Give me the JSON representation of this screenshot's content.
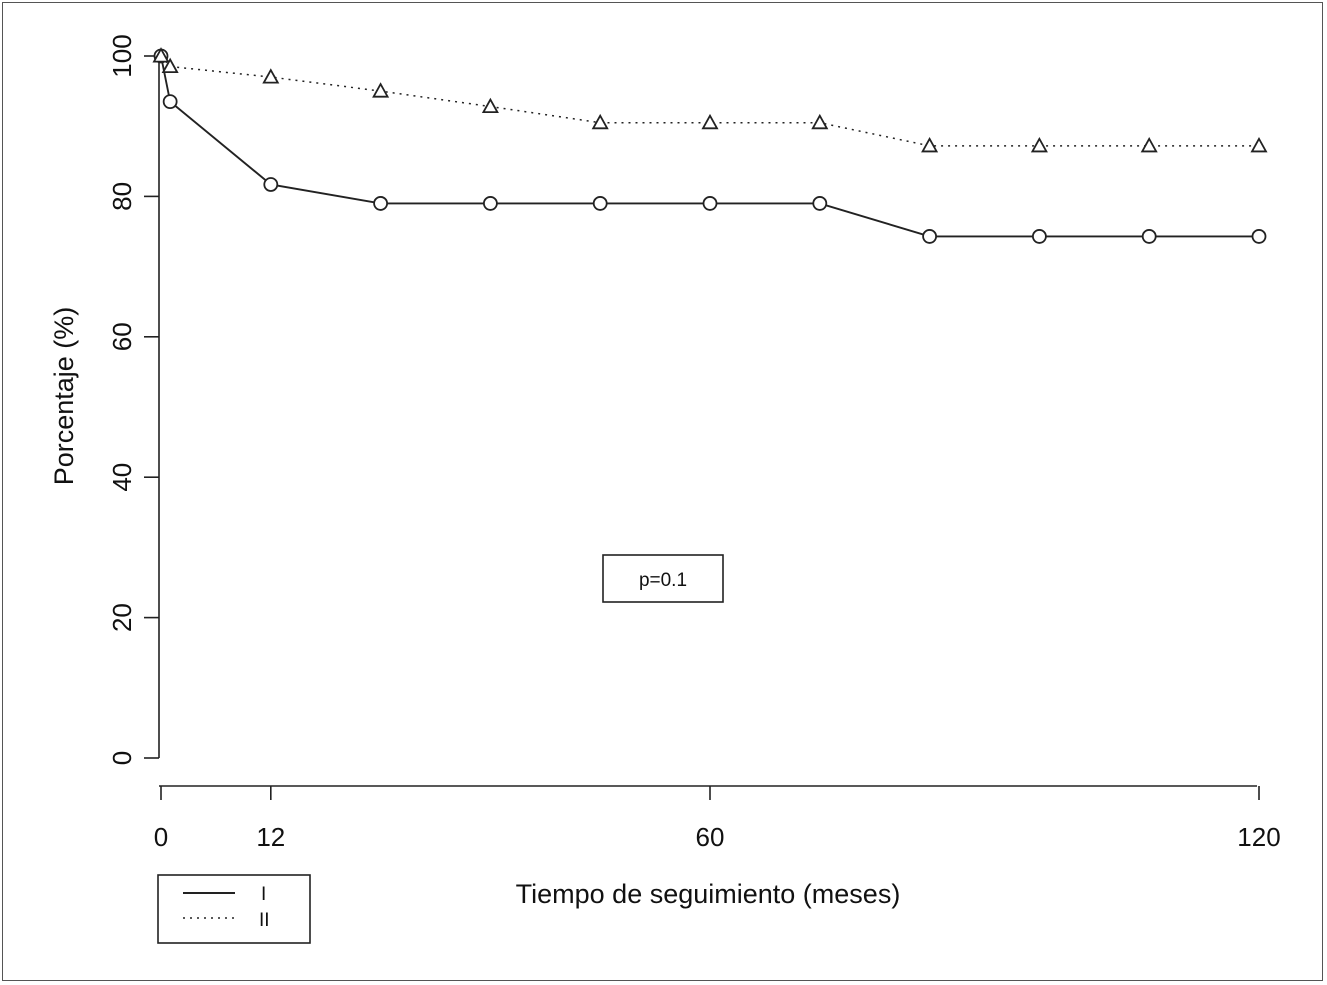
{
  "chart_data": {
    "type": "line",
    "xlabel": "Tiempo de seguimiento (meses)",
    "ylabel": "Porcentaje (%)",
    "xlim": [
      0,
      120
    ],
    "ylim": [
      0,
      100
    ],
    "x_ticks": [
      0,
      12,
      60,
      120
    ],
    "y_ticks": [
      0,
      20,
      40,
      60,
      80,
      100
    ],
    "annotation": "p=0.1",
    "legend_position": "bottom-left",
    "grid": false,
    "series": [
      {
        "name": "I",
        "line_style": "solid",
        "marker": "circle",
        "color": "#222222",
        "x": [
          0,
          1,
          12,
          24,
          36,
          48,
          60,
          72,
          84,
          96,
          108,
          120
        ],
        "y": [
          100,
          93.5,
          81.7,
          79.0,
          79.0,
          79.0,
          79.0,
          79.0,
          74.3,
          74.3,
          74.3,
          74.3
        ]
      },
      {
        "name": "II",
        "line_style": "dotted",
        "marker": "triangle",
        "color": "#222222",
        "x": [
          0,
          1,
          12,
          24,
          36,
          48,
          60,
          72,
          84,
          96,
          108,
          120
        ],
        "y": [
          100,
          98.5,
          97.0,
          95.0,
          92.8,
          90.5,
          90.5,
          90.5,
          87.2,
          87.2,
          87.2,
          87.2
        ]
      }
    ]
  }
}
